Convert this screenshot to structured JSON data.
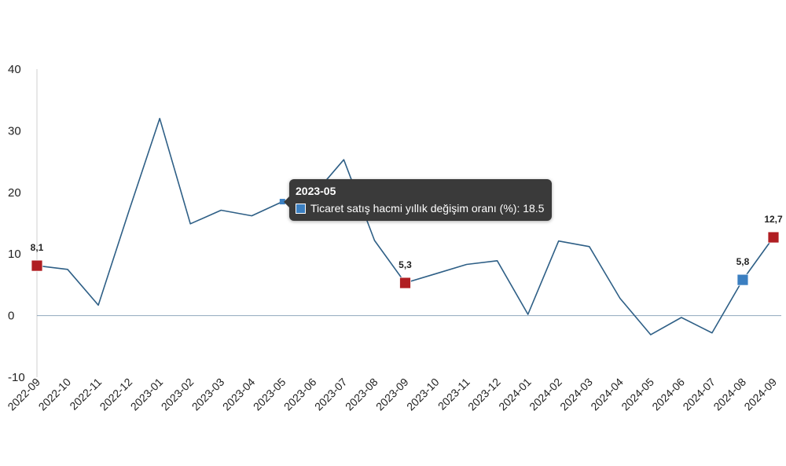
{
  "chart_data": {
    "type": "line",
    "categories": [
      "2022-09",
      "2022-10",
      "2022-11",
      "2022-12",
      "2023-01",
      "2023-02",
      "2023-03",
      "2023-04",
      "2023-05",
      "2023-06",
      "2023-07",
      "2023-08",
      "2023-09",
      "2023-10",
      "2023-11",
      "2023-12",
      "2024-01",
      "2024-02",
      "2024-03",
      "2024-04",
      "2024-05",
      "2024-06",
      "2024-07",
      "2024-08",
      "2024-09"
    ],
    "series": [
      {
        "name": "Ticaret satış hacmi yıllık değişim oranı (%)",
        "values": [
          8.1,
          7.5,
          1.7,
          17.0,
          32.0,
          14.9,
          17.1,
          16.2,
          18.5,
          19.5,
          25.3,
          12.2,
          5.3,
          6.8,
          8.3,
          8.9,
          0.2,
          12.1,
          11.2,
          2.8,
          -3.1,
          -0.3,
          -2.8,
          5.8,
          12.7
        ]
      }
    ],
    "ylim": [
      -10,
      40
    ],
    "yticks": [
      "40",
      "30",
      "20",
      "10",
      "0",
      "-10"
    ],
    "data_labels": [
      {
        "index": 0,
        "text": "8,1",
        "color": "#b01e22"
      },
      {
        "index": 12,
        "text": "5,3",
        "color": "#b01e22"
      },
      {
        "index": 23,
        "text": "5,8",
        "color": "#3b7fc1"
      },
      {
        "index": 24,
        "text": "12,7",
        "color": "#b01e22"
      }
    ],
    "line_color": "#2e5f86",
    "zero_line_color": "#8fa8bd",
    "hover_point_color": "#3b7fc1",
    "tooltip": {
      "index": 8,
      "title": "2023-05",
      "text": "Ticaret satış hacmi yıllık değişim oranı (%): 18.5",
      "swatch_color": "#3b7fc1"
    }
  }
}
